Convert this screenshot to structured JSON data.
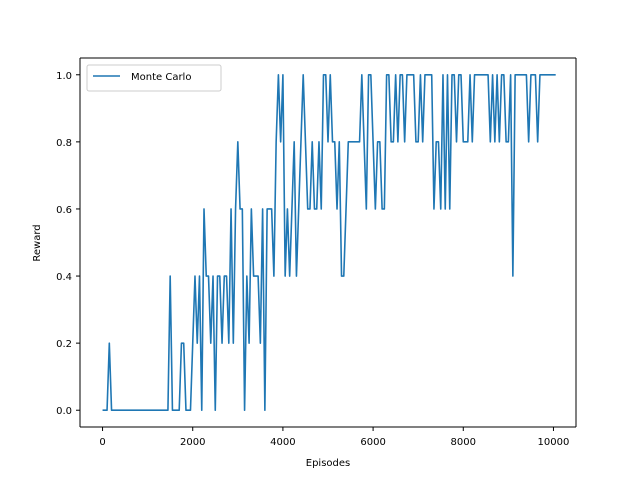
{
  "chart_data": {
    "type": "line",
    "title": "",
    "xlabel": "Episodes",
    "ylabel": "Reward",
    "xlim": [
      -500,
      10500
    ],
    "ylim": [
      -0.05,
      1.05
    ],
    "xticks": [
      0,
      2000,
      4000,
      6000,
      8000,
      10000
    ],
    "xtick_labels": [
      "0",
      "2000",
      "4000",
      "6000",
      "8000",
      "10000"
    ],
    "yticks": [
      0.0,
      0.2,
      0.4,
      0.6,
      0.8,
      1.0
    ],
    "ytick_labels": [
      "0.0",
      "0.2",
      "0.4",
      "0.6",
      "0.8",
      "1.0"
    ],
    "grid": false,
    "legend_position": "top-left",
    "colors": {
      "series": "#1f77b4",
      "axis": "#000000",
      "legend_border": "#cccccc"
    },
    "series": [
      {
        "name": "Monte Carlo",
        "x": [
          0,
          100,
          150,
          200,
          250,
          300,
          1400,
          1450,
          1500,
          1550,
          1600,
          1700,
          1750,
          1800,
          1850,
          1900,
          1950,
          2000,
          2050,
          2100,
          2150,
          2200,
          2250,
          2300,
          2350,
          2400,
          2450,
          2500,
          2550,
          2600,
          2650,
          2700,
          2750,
          2800,
          2850,
          2900,
          2950,
          3000,
          3050,
          3100,
          3150,
          3200,
          3250,
          3300,
          3350,
          3400,
          3450,
          3500,
          3550,
          3600,
          3650,
          3700,
          3750,
          3800,
          3850,
          3900,
          3950,
          4000,
          4050,
          4100,
          4150,
          4200,
          4250,
          4300,
          4350,
          4400,
          4450,
          4500,
          4550,
          4600,
          4650,
          4700,
          4750,
          4800,
          4850,
          4900,
          4950,
          5000,
          5050,
          5100,
          5150,
          5200,
          5250,
          5300,
          5350,
          5400,
          5450,
          5500,
          5550,
          5600,
          5650,
          5700,
          5750,
          5800,
          5850,
          5900,
          5950,
          6000,
          6050,
          6100,
          6150,
          6200,
          6250,
          6300,
          6350,
          6400,
          6450,
          6500,
          6550,
          6600,
          6650,
          6700,
          6750,
          6800,
          6850,
          6900,
          6950,
          7000,
          7050,
          7100,
          7150,
          7200,
          7250,
          7300,
          7350,
          7400,
          7450,
          7500,
          7550,
          7600,
          7650,
          7700,
          7750,
          7800,
          7850,
          7900,
          7950,
          8000,
          8050,
          8100,
          8150,
          8200,
          8250,
          8300,
          8350,
          8400,
          8450,
          8500,
          8550,
          8600,
          8650,
          8700,
          8750,
          8800,
          8850,
          8900,
          8950,
          9000,
          9050,
          9100,
          9150,
          9200,
          9250,
          9300,
          9350,
          9400,
          9450,
          9500,
          9550,
          9600,
          9650,
          9700,
          9750,
          9800,
          9850,
          9900,
          9950,
          10000,
          10050
        ],
        "y": [
          0.0,
          0.0,
          0.2,
          0.0,
          0.0,
          0.0,
          0.0,
          0.0,
          0.4,
          0.0,
          0.0,
          0.0,
          0.2,
          0.2,
          0.0,
          0.0,
          0.0,
          0.2,
          0.4,
          0.2,
          0.4,
          0.0,
          0.6,
          0.4,
          0.4,
          0.2,
          0.4,
          0.0,
          0.4,
          0.4,
          0.2,
          0.4,
          0.4,
          0.2,
          0.6,
          0.2,
          0.6,
          0.8,
          0.6,
          0.6,
          0.0,
          0.4,
          0.2,
          0.6,
          0.4,
          0.4,
          0.4,
          0.2,
          0.6,
          0.0,
          0.6,
          0.6,
          0.6,
          0.4,
          0.8,
          1.0,
          0.8,
          1.0,
          0.4,
          0.6,
          0.4,
          0.6,
          0.8,
          0.4,
          0.6,
          0.8,
          1.0,
          0.8,
          0.6,
          0.6,
          0.8,
          0.6,
          0.6,
          0.8,
          0.6,
          1.0,
          1.0,
          0.8,
          1.0,
          0.8,
          0.8,
          0.6,
          0.8,
          0.4,
          0.4,
          0.6,
          0.8,
          0.8,
          0.8,
          0.8,
          0.8,
          0.8,
          1.0,
          0.8,
          0.6,
          1.0,
          1.0,
          0.8,
          0.6,
          0.8,
          0.8,
          0.6,
          0.6,
          1.0,
          1.0,
          0.8,
          0.8,
          1.0,
          0.8,
          1.0,
          1.0,
          0.8,
          1.0,
          1.0,
          1.0,
          1.0,
          0.8,
          0.8,
          1.0,
          0.8,
          1.0,
          1.0,
          1.0,
          1.0,
          0.6,
          0.8,
          0.8,
          0.6,
          1.0,
          0.6,
          1.0,
          0.6,
          1.0,
          1.0,
          0.8,
          1.0,
          1.0,
          0.8,
          0.8,
          0.8,
          1.0,
          0.8,
          1.0,
          1.0,
          1.0,
          1.0,
          1.0,
          1.0,
          1.0,
          0.8,
          1.0,
          0.8,
          1.0,
          0.8,
          1.0,
          1.0,
          0.8,
          0.8,
          1.0,
          0.4,
          1.0,
          1.0,
          1.0,
          1.0,
          1.0,
          1.0,
          0.8,
          1.0,
          1.0,
          1.0,
          0.8,
          1.0,
          1.0,
          1.0,
          1.0,
          1.0,
          1.0,
          1.0,
          1.0
        ]
      }
    ]
  }
}
